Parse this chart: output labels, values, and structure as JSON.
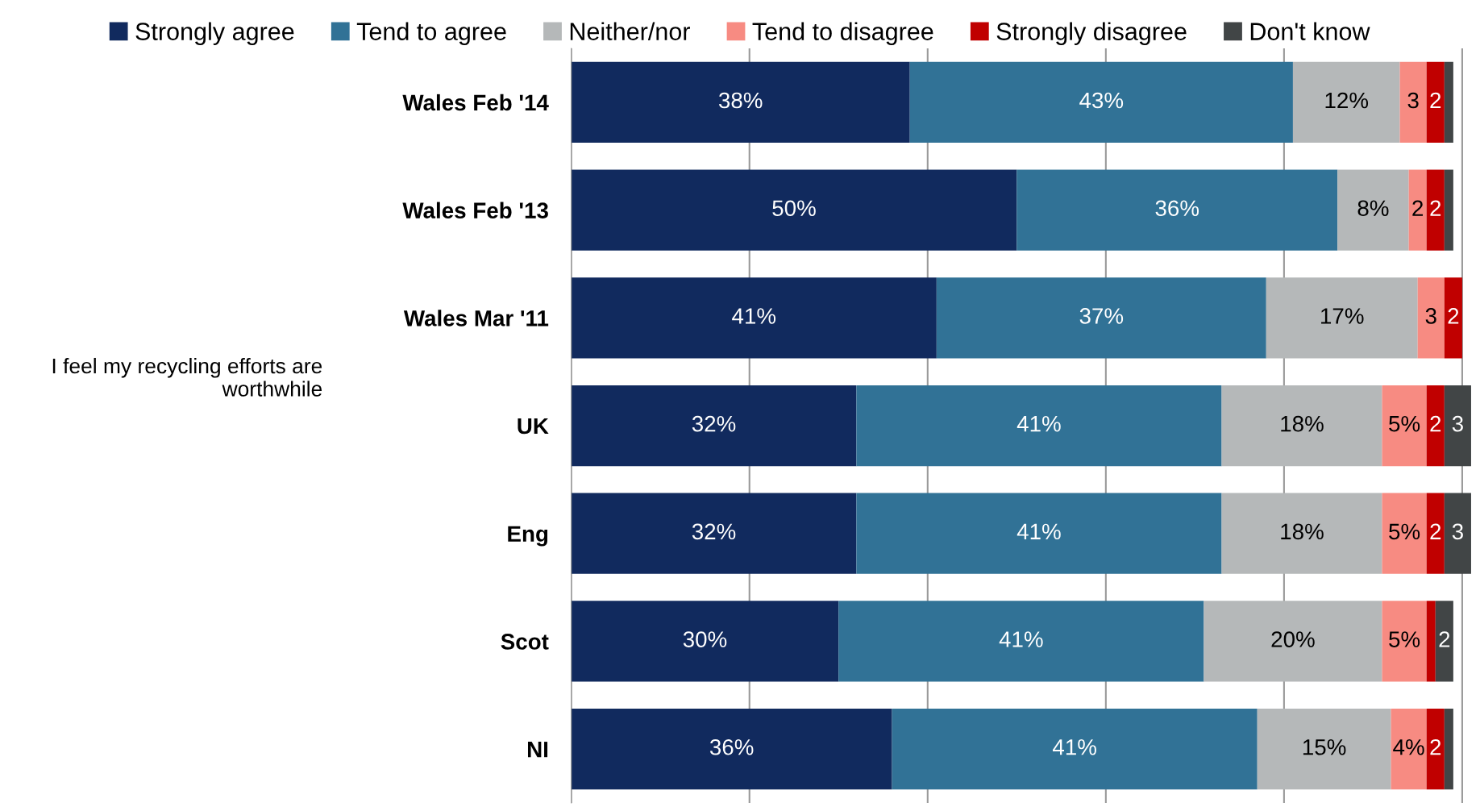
{
  "chart_data": {
    "type": "bar",
    "orientation": "horizontal",
    "stacked": true,
    "categories": [
      "Wales Feb '14",
      "Wales Feb '13",
      "Wales Mar '11",
      "UK",
      "Eng",
      "Scot",
      "NI"
    ],
    "series": [
      {
        "name": "Strongly agree",
        "color": "#112a5e",
        "values": [
          38,
          50,
          41,
          32,
          32,
          30,
          36
        ],
        "value_labels": [
          "38%",
          "50%",
          "41%",
          "32%",
          "32%",
          "30%",
          "36%"
        ]
      },
      {
        "name": "Tend to agree",
        "color": "#317296",
        "values": [
          43,
          36,
          37,
          41,
          41,
          41,
          41
        ],
        "value_labels": [
          "43%",
          "36%",
          "37%",
          "41%",
          "41%",
          "41%",
          "41%"
        ]
      },
      {
        "name": "Neither/nor",
        "color": "#b5b8b9",
        "values": [
          12,
          8,
          17,
          18,
          18,
          20,
          15
        ],
        "value_labels": [
          "12%",
          "8%",
          "17%",
          "18%",
          "18%",
          "20%",
          "15%"
        ]
      },
      {
        "name": "Tend to disagree",
        "color": "#f78b82",
        "values": [
          3,
          2,
          3,
          5,
          5,
          5,
          4
        ],
        "value_labels": [
          "3",
          "2",
          "3",
          "5%",
          "5%",
          "5%",
          "4%"
        ]
      },
      {
        "name": "Strongly disagree",
        "color": "#c00000",
        "values": [
          2,
          2,
          2,
          2,
          2,
          1,
          2
        ],
        "value_labels": [
          "2",
          "2",
          "2",
          "2",
          "2",
          null,
          "2"
        ]
      },
      {
        "name": "Don't know",
        "color": "#414546",
        "values": [
          1,
          1,
          0,
          3,
          3,
          2,
          1
        ],
        "value_labels": [
          null,
          null,
          null,
          "3",
          "3",
          "2",
          null
        ]
      }
    ],
    "xlim": [
      0,
      101
    ],
    "xticks": [
      {
        "value": 0,
        "label": null
      },
      {
        "value": 20,
        "label": null
      },
      {
        "value": 40,
        "label": null
      },
      {
        "value": 60,
        "label": null
      },
      {
        "value": 80,
        "label": null
      },
      {
        "value": 100,
        "label": null
      }
    ],
    "grid": "x",
    "tick_labels": "y",
    "legend": "top",
    "annotations": [
      "I feel my recycling efforts are\nworthwhile"
    ]
  }
}
